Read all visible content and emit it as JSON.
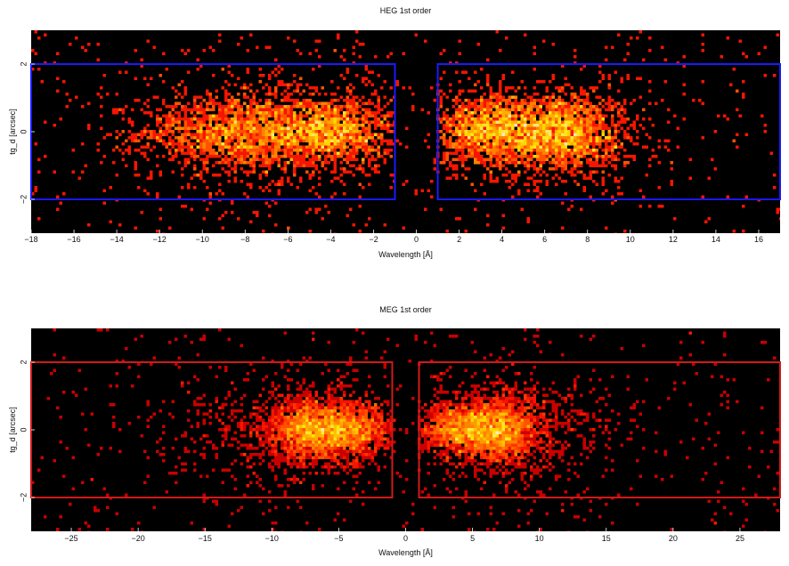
{
  "chart_data": [
    {
      "type": "heatmap",
      "title": "HEG 1st order",
      "xlabel": "Wavelength [Å]",
      "ylabel": "tg_d [arcsec]",
      "xlim": [
        -18,
        17
      ],
      "ylim": [
        -3,
        3
      ],
      "xticks": [
        -18,
        -16,
        -14,
        -12,
        -10,
        -8,
        -6,
        -4,
        -2,
        0,
        2,
        4,
        6,
        8,
        10,
        12,
        14,
        16
      ],
      "yticks": [
        -2,
        0,
        2
      ],
      "colormap": "hot",
      "background": "#000000",
      "regions": [
        {
          "x": [
            -18,
            -1
          ],
          "y": [
            -2,
            2
          ],
          "color": "#1a1aff"
        },
        {
          "x": [
            1,
            17
          ],
          "y": [
            -2,
            2
          ],
          "color": "#1a1aff"
        }
      ],
      "clusters": [
        {
          "x": -8.5,
          "sx": 2.2,
          "y": 0,
          "sy": 0.55,
          "weight": 1.0
        },
        {
          "x": -4.0,
          "sx": 1.4,
          "y": 0,
          "sy": 0.5,
          "weight": 0.8
        },
        {
          "x": -6.0,
          "sx": 3.5,
          "y": 0,
          "sy": 0.9,
          "weight": 0.5
        },
        {
          "x": 3.5,
          "sx": 1.3,
          "y": 0,
          "sy": 0.5,
          "weight": 0.8
        },
        {
          "x": 6.7,
          "sx": 1.4,
          "y": 0,
          "sy": 0.55,
          "weight": 1.0
        },
        {
          "x": 5.5,
          "sx": 3.0,
          "y": 0,
          "sy": 0.9,
          "weight": 0.5
        }
      ]
    },
    {
      "type": "heatmap",
      "title": "MEG 1st order",
      "xlabel": "Wavelength [Å]",
      "ylabel": "tg_d [arcsec]",
      "xlim": [
        -28,
        28
      ],
      "ylim": [
        -3,
        3
      ],
      "xticks": [
        -25,
        -20,
        -15,
        -10,
        -5,
        0,
        5,
        10,
        15,
        20,
        25
      ],
      "yticks": [
        -2,
        0,
        2
      ],
      "colormap": "hot",
      "background": "#000000",
      "regions": [
        {
          "x": [
            -28,
            -1
          ],
          "y": [
            -2,
            2
          ],
          "color": "#d11a1a"
        },
        {
          "x": [
            1,
            28
          ],
          "y": [
            -2,
            2
          ],
          "color": "#d11a1a"
        }
      ],
      "clusters": [
        {
          "x": -7.0,
          "sx": 1.6,
          "y": 0,
          "sy": 0.45,
          "weight": 1.0
        },
        {
          "x": -4.0,
          "sx": 1.5,
          "y": 0,
          "sy": 0.4,
          "weight": 0.7
        },
        {
          "x": -8.0,
          "sx": 4.5,
          "y": 0,
          "sy": 0.9,
          "weight": 0.5
        },
        {
          "x": 7.0,
          "sx": 1.5,
          "y": 0,
          "sy": 0.45,
          "weight": 1.0
        },
        {
          "x": 4.0,
          "sx": 1.6,
          "y": 0,
          "sy": 0.4,
          "weight": 0.7
        },
        {
          "x": 8.0,
          "sx": 4.0,
          "y": 0,
          "sy": 0.9,
          "weight": 0.5
        }
      ]
    }
  ]
}
